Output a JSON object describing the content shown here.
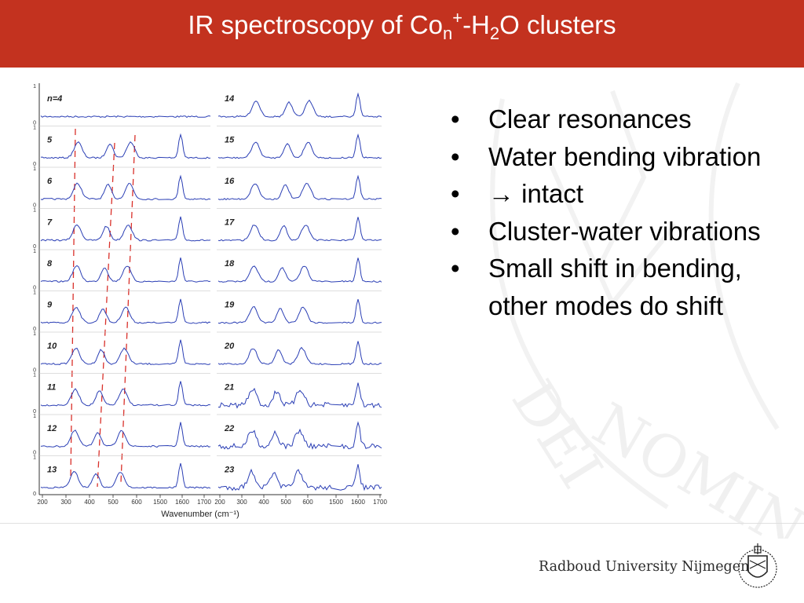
{
  "slide": {
    "title": {
      "pre": "IR spectroscopy of Co",
      "sub_n": "n",
      "sup_plus": "+",
      "mid": "-H",
      "sub_2": "2",
      "post": "O clusters"
    },
    "bullets": [
      {
        "text": "Clear resonances"
      },
      {
        "text": "Water bending vibration"
      },
      {
        "text": "→ intact"
      },
      {
        "text": "Cluster-water vibrations"
      },
      {
        "text": "Small shift in bending, other modes do shift"
      }
    ],
    "bullet_glyph": "•",
    "university": "Radboud University Nijmegen",
    "colors": {
      "header": "#c3321f",
      "trace": "#2b3fb5",
      "guide": "#d9302a"
    }
  },
  "figure": {
    "panels": [
      {
        "labels": [
          "n=4",
          "5",
          "6",
          "7",
          "8",
          "9",
          "10",
          "11",
          "12",
          "13"
        ]
      },
      {
        "labels": [
          "14",
          "15",
          "16",
          "17",
          "18",
          "19",
          "20",
          "21",
          "22",
          "23"
        ]
      }
    ],
    "x_ticks": [
      "200",
      "300",
      "400",
      "500",
      "600",
      "1500",
      "1600",
      "1700",
      "200",
      "300",
      "400",
      "500",
      "600",
      "1500",
      "1600",
      "1700"
    ],
    "xlabel": "Wavenumber (cm⁻¹)",
    "y_tick_top": "1",
    "y_tick_bottom": "0"
  }
}
